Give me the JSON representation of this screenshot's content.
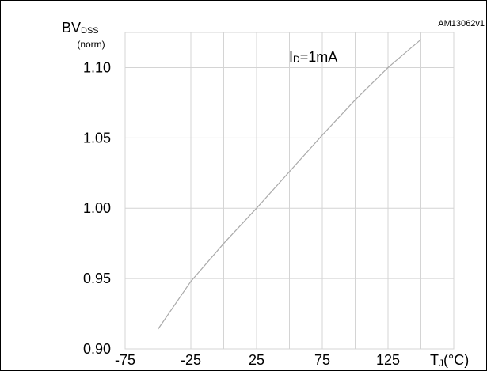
{
  "chart_data": {
    "type": "line",
    "title": "",
    "code": "AM13062v1",
    "ylabel": {
      "main": "BV",
      "sub": "DSS",
      "norm": "(norm)"
    },
    "xlabel": {
      "main": "T",
      "sub": "J",
      "unit": "(°C)"
    },
    "annotation": {
      "main": "I",
      "sub": "D",
      "rest": "=1mA"
    },
    "xlim": [
      -75,
      175
    ],
    "ylim": [
      0.9,
      1.125
    ],
    "xticks": [
      -75,
      -25,
      25,
      75,
      125
    ],
    "xtick_labels": [
      "-75",
      "-25",
      "25",
      "75",
      "125"
    ],
    "yticks": [
      0.9,
      0.95,
      1.0,
      1.05,
      1.1
    ],
    "ytick_labels": [
      "0.90",
      "0.95",
      "1.00",
      "1.05",
      "1.10"
    ],
    "grid": true,
    "series": [
      {
        "color": "#aaaaaa",
        "x": [
          -50,
          -25,
          0,
          25,
          50,
          75,
          100,
          125,
          150
        ],
        "y": [
          0.914,
          0.948,
          0.975,
          1.0,
          1.026,
          1.052,
          1.077,
          1.1,
          1.12
        ]
      }
    ]
  }
}
